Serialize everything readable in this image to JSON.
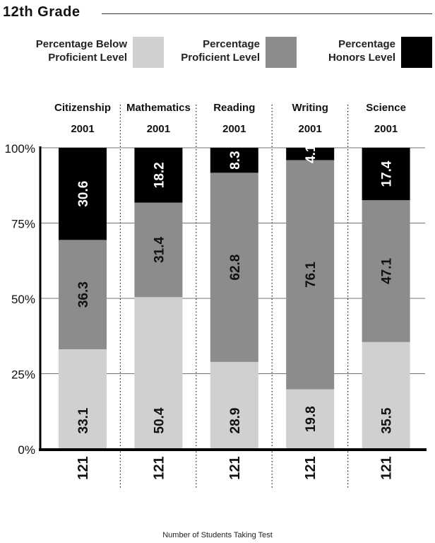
{
  "header": {
    "title": "12th Grade"
  },
  "legend": [
    {
      "label": "Percentage Below\nProficient Level",
      "color": "#d0d0d0"
    },
    {
      "label": "Percentage\nProficient Level",
      "color": "#8c8c8c"
    },
    {
      "label": "Percentage\nHonors Level",
      "color": "#000000"
    }
  ],
  "chart_data": {
    "type": "bar",
    "stacked": true,
    "categories": [
      "Citizenship",
      "Mathematics",
      "Reading",
      "Writing",
      "Science"
    ],
    "category_years": [
      "2001",
      "2001",
      "2001",
      "2001",
      "2001"
    ],
    "series": [
      {
        "name": "Percentage Below Proficient Level",
        "values": [
          33.1,
          50.4,
          28.9,
          19.8,
          35.5
        ],
        "color": "#d0d0d0",
        "label_color": "#111111"
      },
      {
        "name": "Percentage Proficient Level",
        "values": [
          36.3,
          31.4,
          62.8,
          76.1,
          47.1
        ],
        "color": "#8c8c8c",
        "label_color": "#111111"
      },
      {
        "name": "Percentage Honors Level",
        "values": [
          30.6,
          18.2,
          8.3,
          4.1,
          17.4
        ],
        "color": "#000000",
        "label_color": "#ffffff"
      }
    ],
    "yticks": [
      "0%",
      "25%",
      "50%",
      "75%",
      "100%"
    ],
    "ylim": [
      0,
      100
    ],
    "grid": true,
    "students": [
      "121",
      "121",
      "121",
      "121",
      "121"
    ],
    "footer_label": "Number of Students Taking Test"
  }
}
